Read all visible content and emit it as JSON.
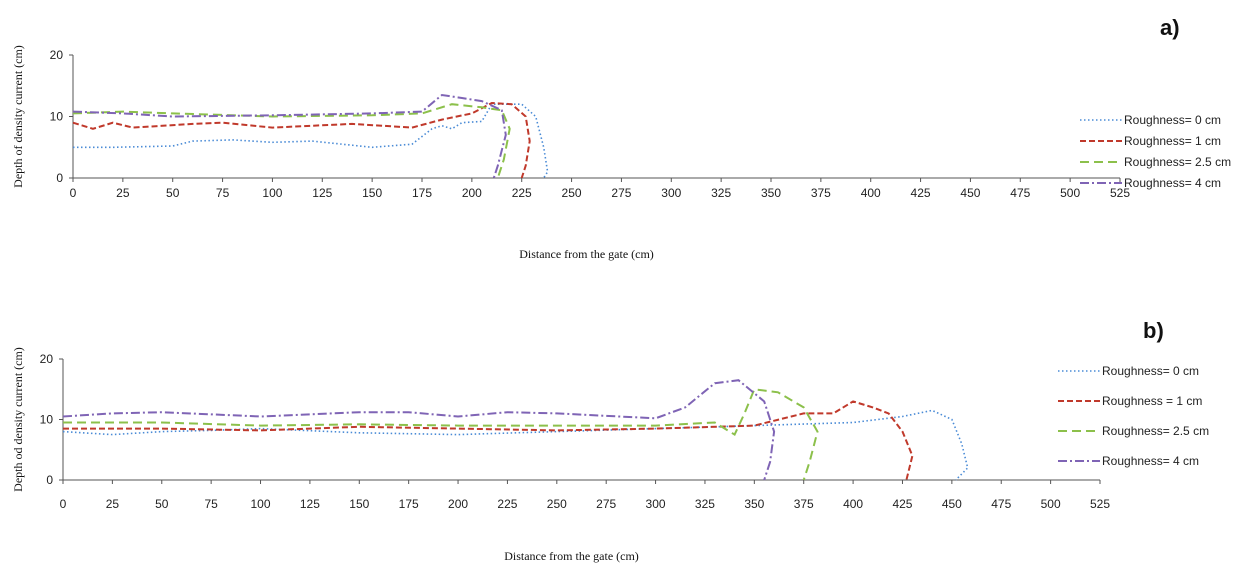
{
  "chart_data": [
    {
      "type": "line",
      "panel_label": "a)",
      "xlabel": "Distance from the gate (cm)",
      "ylabel": "Depth of density current (cm)",
      "xlim": [
        0,
        525
      ],
      "ylim": [
        0,
        20
      ],
      "xticks": [
        0,
        25,
        50,
        75,
        100,
        125,
        150,
        175,
        200,
        225,
        250,
        275,
        300,
        325,
        350,
        375,
        400,
        425,
        450,
        475,
        500,
        525
      ],
      "yticks": [
        0,
        10,
        20
      ],
      "grid": false,
      "legend_position": "right",
      "series": [
        {
          "name": "Roughness= 0 cm",
          "color": "#4a8bd6",
          "dash": "dotted",
          "points": [
            [
              0,
              5
            ],
            [
              20,
              5
            ],
            [
              50,
              5.2
            ],
            [
              60,
              6
            ],
            [
              80,
              6.2
            ],
            [
              100,
              5.8
            ],
            [
              120,
              6
            ],
            [
              150,
              5
            ],
            [
              170,
              5.5
            ],
            [
              180,
              8
            ],
            [
              185,
              8.5
            ],
            [
              190,
              8
            ],
            [
              195,
              9
            ],
            [
              205,
              9.2
            ],
            [
              210,
              12
            ],
            [
              225,
              12
            ],
            [
              232,
              10
            ],
            [
              236,
              5
            ],
            [
              238,
              1
            ],
            [
              236,
              0
            ]
          ]
        },
        {
          "name": "Roughness= 1 cm",
          "color": "#c0392b",
          "dash": "dashed",
          "points": [
            [
              0,
              9
            ],
            [
              10,
              8
            ],
            [
              20,
              9
            ],
            [
              30,
              8.2
            ],
            [
              60,
              8.8
            ],
            [
              75,
              9
            ],
            [
              100,
              8.2
            ],
            [
              140,
              8.8
            ],
            [
              170,
              8.2
            ],
            [
              185,
              9.5
            ],
            [
              200,
              10.5
            ],
            [
              210,
              12.2
            ],
            [
              220,
              12
            ],
            [
              227,
              10
            ],
            [
              229,
              6
            ],
            [
              227,
              2
            ],
            [
              225,
              0
            ]
          ]
        },
        {
          "name": "Roughness= 2.5 cm",
          "color": "#8cc04b",
          "dash": "long-dash",
          "points": [
            [
              0,
              10.5
            ],
            [
              25,
              10.8
            ],
            [
              50,
              10.5
            ],
            [
              100,
              10
            ],
            [
              150,
              10.2
            ],
            [
              175,
              10.5
            ],
            [
              190,
              12
            ],
            [
              205,
              11.5
            ],
            [
              215,
              11
            ],
            [
              219,
              8
            ],
            [
              216,
              3
            ],
            [
              213,
              0
            ]
          ]
        },
        {
          "name": "Roughness= 4 cm",
          "color": "#7f64b5",
          "dash": "dash-dot",
          "points": [
            [
              0,
              10.8
            ],
            [
              25,
              10.5
            ],
            [
              50,
              10
            ],
            [
              100,
              10.2
            ],
            [
              150,
              10.5
            ],
            [
              175,
              10.8
            ],
            [
              185,
              13.5
            ],
            [
              195,
              13
            ],
            [
              205,
              12.5
            ],
            [
              215,
              11
            ],
            [
              217,
              7
            ],
            [
              213,
              2
            ],
            [
              211,
              0
            ]
          ]
        }
      ]
    },
    {
      "type": "line",
      "panel_label": "b)",
      "xlabel": "Distance from the gate (cm)",
      "ylabel": "Depth od density current (cm)",
      "xlim": [
        0,
        525
      ],
      "ylim": [
        0,
        20
      ],
      "xticks": [
        0,
        25,
        50,
        75,
        100,
        125,
        150,
        175,
        200,
        225,
        250,
        275,
        300,
        325,
        350,
        375,
        400,
        425,
        450,
        475,
        500,
        525
      ],
      "yticks": [
        0,
        10,
        20
      ],
      "grid": false,
      "legend_position": "right",
      "series": [
        {
          "name": "Roughness= 0 cm",
          "color": "#4a8bd6",
          "dash": "dotted",
          "points": [
            [
              0,
              8
            ],
            [
              25,
              7.5
            ],
            [
              50,
              8
            ],
            [
              75,
              8.2
            ],
            [
              100,
              8.5
            ],
            [
              150,
              7.8
            ],
            [
              200,
              7.5
            ],
            [
              250,
              8
            ],
            [
              300,
              8.5
            ],
            [
              350,
              9
            ],
            [
              400,
              9.5
            ],
            [
              425,
              10.5
            ],
            [
              440,
              11.5
            ],
            [
              450,
              10
            ],
            [
              455,
              6
            ],
            [
              458,
              2
            ],
            [
              452,
              0
            ]
          ]
        },
        {
          "name": "Roughness = 1 cm",
          "color": "#c0392b",
          "dash": "dashed",
          "points": [
            [
              0,
              8.5
            ],
            [
              50,
              8.5
            ],
            [
              100,
              8.2
            ],
            [
              150,
              8.8
            ],
            [
              200,
              8.5
            ],
            [
              250,
              8.2
            ],
            [
              300,
              8.5
            ],
            [
              350,
              9
            ],
            [
              375,
              11
            ],
            [
              390,
              11
            ],
            [
              400,
              13
            ],
            [
              410,
              12
            ],
            [
              418,
              11
            ],
            [
              425,
              8
            ],
            [
              430,
              4
            ],
            [
              427,
              0
            ]
          ]
        },
        {
          "name": "Roughness= 2.5 cm",
          "color": "#8cc04b",
          "dash": "long-dash",
          "points": [
            [
              0,
              9.5
            ],
            [
              50,
              9.5
            ],
            [
              100,
              9
            ],
            [
              150,
              9.2
            ],
            [
              200,
              9
            ],
            [
              250,
              9
            ],
            [
              300,
              9
            ],
            [
              330,
              9.5
            ],
            [
              340,
              7.5
            ],
            [
              345,
              11
            ],
            [
              350,
              15
            ],
            [
              362,
              14.5
            ],
            [
              375,
              12
            ],
            [
              382,
              8
            ],
            [
              378,
              3
            ],
            [
              375,
              0
            ]
          ]
        },
        {
          "name": "Roughness= 4 cm",
          "color": "#7f64b5",
          "dash": "dash-dot",
          "points": [
            [
              0,
              10.5
            ],
            [
              25,
              11
            ],
            [
              50,
              11.2
            ],
            [
              100,
              10.5
            ],
            [
              150,
              11.2
            ],
            [
              175,
              11.2
            ],
            [
              200,
              10.5
            ],
            [
              225,
              11.2
            ],
            [
              250,
              11
            ],
            [
              300,
              10.2
            ],
            [
              315,
              12
            ],
            [
              330,
              16
            ],
            [
              342,
              16.5
            ],
            [
              355,
              13
            ],
            [
              360,
              8
            ],
            [
              358,
              3
            ],
            [
              355,
              0
            ]
          ]
        }
      ]
    }
  ]
}
